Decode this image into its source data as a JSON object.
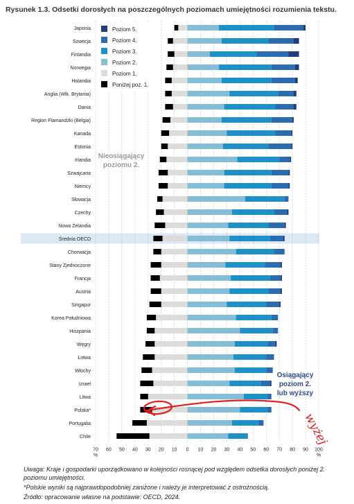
{
  "title": "Rysunek 1.3. Odsetki dorosłych na poszczególnych poziomach umiejętności rozumienia tekstu.",
  "chart_data": {
    "type": "bar",
    "orientation": "horizontal-diverging-stacked",
    "xlim": [
      -70,
      100
    ],
    "xticks": [
      {
        "value": -70,
        "label": "70"
      },
      {
        "value": -60,
        "label": "60"
      },
      {
        "value": -50,
        "label": "50"
      },
      {
        "value": -40,
        "label": "40"
      },
      {
        "value": -30,
        "label": "30"
      },
      {
        "value": -20,
        "label": "20"
      },
      {
        "value": -10,
        "label": "10"
      },
      {
        "value": 0,
        "label": "0"
      },
      {
        "value": 10,
        "label": "10"
      },
      {
        "value": 20,
        "label": "20"
      },
      {
        "value": 30,
        "label": "30"
      },
      {
        "value": 40,
        "label": "40"
      },
      {
        "value": 50,
        "label": "50"
      },
      {
        "value": 60,
        "label": "60"
      },
      {
        "value": 70,
        "label": "70"
      },
      {
        "value": 80,
        "label": "80"
      },
      {
        "value": 90,
        "label": "90"
      },
      {
        "value": 100,
        "label": "100"
      }
    ],
    "unit_label": "%",
    "grid": true,
    "legend_position": "top-left",
    "colors": {
      "poziom5": "#1f3d7a",
      "poziom4": "#2b6cb0",
      "poziom3": "#1f8fc8",
      "poziom2": "#85bcd8",
      "poziom1": "#dcdcdc",
      "ponizej1": "#000000",
      "highlight": "#dce9f5",
      "annotation_text": "#2c4a8a",
      "handwriting": "#e02020"
    },
    "series": [
      {
        "name": "Poziom 5.",
        "key": "poziom5"
      },
      {
        "name": "Poziom 4.",
        "key": "poziom4"
      },
      {
        "name": "Poziom 3.",
        "key": "poziom3"
      },
      {
        "name": "Poziom 2.",
        "key": "poziom2"
      },
      {
        "name": "Poziom 1.",
        "key": "poziom1"
      },
      {
        "name": "Poniżej poz. 1.",
        "key": "ponizej1"
      }
    ],
    "legend_order": [
      "poziom5",
      "poziom4",
      "poziom3",
      "poziom2",
      "poziom1",
      "ponizej1"
    ],
    "countries": [
      {
        "name": "Japonia",
        "below1": 3,
        "level1": 7,
        "level2": 24,
        "level3": 42,
        "level4": 22,
        "level5": 2
      },
      {
        "name": "Szwecja",
        "below1": 4,
        "level1": 11,
        "level2": 26,
        "level3": 36,
        "level4": 19,
        "level5": 4
      },
      {
        "name": "Finlandia",
        "below1": 5,
        "level1": 10,
        "level2": 17,
        "level3": 36,
        "level4": 24,
        "level5": 8
      },
      {
        "name": "Norwegia",
        "below1": 5,
        "level1": 11,
        "level2": 24,
        "level3": 40,
        "level4": 18,
        "level5": 3
      },
      {
        "name": "Holandia",
        "below1": 5,
        "level1": 12,
        "level2": 26,
        "level3": 38,
        "level4": 18,
        "level5": 2
      },
      {
        "name": "Anglia (Wlk. Brytania)",
        "below1": 5,
        "level1": 12,
        "level2": 32,
        "level3": 37,
        "level4": 12,
        "level5": 2
      },
      {
        "name": "Dania",
        "below1": 6,
        "level1": 11,
        "level2": 28,
        "level3": 39,
        "level4": 14,
        "level5": 2
      },
      {
        "name": "Region Flamandzki (Belgia)",
        "below1": 6,
        "level1": 13,
        "level2": 26,
        "level3": 38,
        "level4": 16,
        "level5": 1
      },
      {
        "name": "Kanada",
        "below1": 6,
        "level1": 14,
        "level2": 30,
        "level3": 37,
        "level4": 12,
        "level5": 1
      },
      {
        "name": "Estonia",
        "below1": 5,
        "level1": 15,
        "level2": 27,
        "level3": 35,
        "level4": 17,
        "level5": 1
      },
      {
        "name": "Irlandia",
        "below1": 5,
        "level1": 16,
        "level2": 38,
        "level3": 32,
        "level4": 8,
        "level5": 1
      },
      {
        "name": "Szwajcaria",
        "below1": 7,
        "level1": 15,
        "level2": 28,
        "level3": 36,
        "level4": 13,
        "level5": 1
      },
      {
        "name": "Niemcy",
        "below1": 7,
        "level1": 15,
        "level2": 28,
        "level3": 36,
        "level4": 13,
        "level5": 1
      },
      {
        "name": "Słowacja",
        "below1": 4,
        "level1": 19,
        "level2": 44,
        "level3": 30,
        "level4": 3,
        "level5": 0
      },
      {
        "name": "Czechy",
        "below1": 6,
        "level1": 18,
        "level2": 34,
        "level3": 32,
        "level4": 10,
        "level5": 1
      },
      {
        "name": "Nowa Zelandia",
        "below1": 8,
        "level1": 17,
        "level2": 31,
        "level3": 31,
        "level4": 12,
        "level5": 1
      },
      {
        "name": "Średnia OECD",
        "below1": 7,
        "level1": 19,
        "level2": 32,
        "level3": 31,
        "level4": 10,
        "level5": 1
      },
      {
        "name": "Chorwacja",
        "below1": 6,
        "level1": 20,
        "level2": 37,
        "level3": 29,
        "level4": 8,
        "level5": 0
      },
      {
        "name": "Stany Zjednoczone",
        "below1": 8,
        "level1": 20,
        "level2": 29,
        "level3": 30,
        "level4": 12,
        "level5": 1
      },
      {
        "name": "Francja",
        "below1": 7,
        "level1": 21,
        "level2": 33,
        "level3": 30,
        "level4": 8,
        "level5": 1
      },
      {
        "name": "Austria",
        "below1": 8,
        "level1": 20,
        "level2": 32,
        "level3": 30,
        "level4": 9,
        "level5": 1
      },
      {
        "name": "Singapur",
        "below1": 9,
        "level1": 20,
        "level2": 30,
        "level3": 30,
        "level4": 10,
        "level5": 1
      },
      {
        "name": "Korea Południowa",
        "below1": 7,
        "level1": 24,
        "level2": 37,
        "level3": 27,
        "level4": 5,
        "level5": 0
      },
      {
        "name": "Hiszpania",
        "below1": 6,
        "level1": 25,
        "level2": 40,
        "level3": 25,
        "level4": 4,
        "level5": 0
      },
      {
        "name": "Węgry",
        "below1": 7,
        "level1": 25,
        "level2": 36,
        "level3": 25,
        "level4": 6,
        "level5": 1
      },
      {
        "name": "Łotwa",
        "below1": 9,
        "level1": 25,
        "level2": 35,
        "level3": 25,
        "level4": 6,
        "level5": 0
      },
      {
        "name": "Włochy",
        "below1": 8,
        "level1": 27,
        "level2": 36,
        "level3": 24,
        "level4": 5,
        "level5": 0
      },
      {
        "name": "Izrael",
        "below1": 10,
        "level1": 26,
        "level2": 32,
        "level3": 24,
        "level4": 7,
        "level5": 1
      },
      {
        "name": "Litwa",
        "below1": 6,
        "level1": 30,
        "level2": 43,
        "level3": 18,
        "level4": 3,
        "level5": 0
      },
      {
        "name": "Polska*",
        "below1": 9,
        "level1": 27,
        "level2": 40,
        "level3": 21,
        "level4": 3,
        "level5": 0
      },
      {
        "name": "Portugalia",
        "below1": 11,
        "level1": 31,
        "level2": 34,
        "level3": 20,
        "level4": 4,
        "level5": 0
      },
      {
        "name": "Chile",
        "below1": 25,
        "level1": 29,
        "level2": 31,
        "level3": 14,
        "level4": 1,
        "level5": 0
      }
    ],
    "highlight_row": "Średnia OECD",
    "annotations": {
      "left": [
        "Nieosiągający",
        "poziomu 2."
      ],
      "right": [
        "Osiągający",
        "poziom 2.",
        "lub wyższy"
      ],
      "handwritten": "wyżej"
    }
  },
  "notes": {
    "uwaga": "Uwaga: Kraje i gospodarki uporządkowano w kolejności rosnącej pod względem odsetka dorosłych poniżej 2. poziomu umiejętności.",
    "polska": "*Polskie wyniki są najprawdopodobniej zaniżone i należy je interpretować z ostrożnością.",
    "zrodlo": "Źródło: opracowanie własne na podstawie: OECD, 2024."
  }
}
